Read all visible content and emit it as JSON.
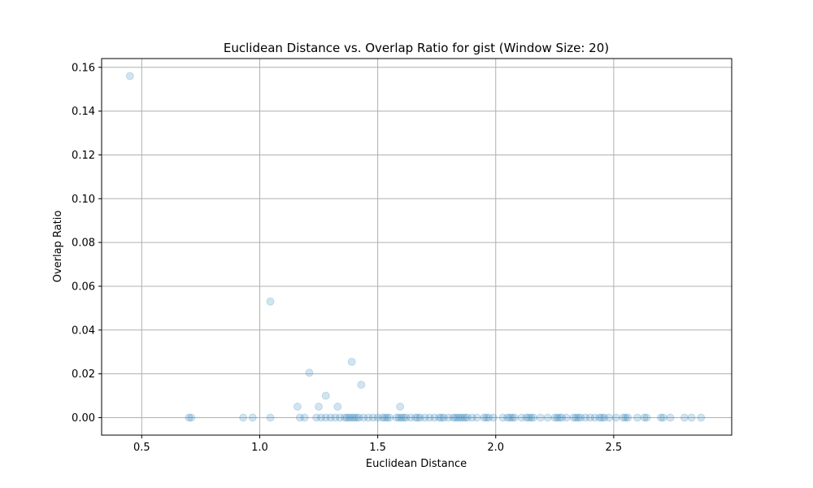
{
  "chart_data": {
    "type": "scatter",
    "title": "Euclidean Distance vs. Overlap Ratio for gist (Window Size: 20)",
    "xlabel": "Euclidean Distance",
    "ylabel": "Overlap Ratio",
    "xlim": [
      0.33,
      3.0
    ],
    "ylim": [
      -0.008,
      0.164
    ],
    "xticks": [
      0.5,
      1.0,
      1.5,
      2.0,
      2.5
    ],
    "xtick_labels": [
      "0.5",
      "1.0",
      "1.5",
      "2.0",
      "2.5"
    ],
    "yticks": [
      0.0,
      0.02,
      0.04,
      0.06,
      0.08,
      0.1,
      0.12,
      0.14,
      0.16
    ],
    "ytick_labels": [
      "0.00",
      "0.02",
      "0.04",
      "0.06",
      "0.08",
      "0.10",
      "0.12",
      "0.14",
      "0.16"
    ],
    "grid": true,
    "marker_color": "#1f77b4",
    "marker_alpha": 0.2,
    "points": {
      "x": [
        0.45,
        1.045,
        1.39,
        1.21,
        1.43,
        1.28,
        1.16,
        1.25,
        1.33,
        1.595,
        0.7,
        0.71,
        0.93,
        0.97,
        1.045,
        1.17,
        1.19,
        1.24,
        1.26,
        1.28,
        1.3,
        1.32,
        1.34,
        1.36,
        1.37,
        1.38,
        1.39,
        1.4,
        1.41,
        1.42,
        1.44,
        1.46,
        1.48,
        1.5,
        1.52,
        1.53,
        1.54,
        1.55,
        1.58,
        1.59,
        1.6,
        1.61,
        1.62,
        1.64,
        1.66,
        1.67,
        1.68,
        1.7,
        1.72,
        1.74,
        1.76,
        1.77,
        1.78,
        1.8,
        1.82,
        1.83,
        1.84,
        1.85,
        1.86,
        1.87,
        1.88,
        1.9,
        1.92,
        1.95,
        1.96,
        1.97,
        1.99,
        2.03,
        2.05,
        2.06,
        2.07,
        2.08,
        2.11,
        2.13,
        2.14,
        2.15,
        2.16,
        2.19,
        2.22,
        2.25,
        2.26,
        2.27,
        2.28,
        2.3,
        2.33,
        2.34,
        2.35,
        2.36,
        2.38,
        2.4,
        2.42,
        2.44,
        2.45,
        2.46,
        2.48,
        2.51,
        2.54,
        2.55,
        2.56,
        2.6,
        2.63,
        2.64,
        2.7,
        2.71,
        2.74,
        2.8,
        2.83,
        2.87
      ],
      "y": [
        0.156,
        0.053,
        0.0255,
        0.0205,
        0.015,
        0.01,
        0.005,
        0.005,
        0.005,
        0.005,
        0,
        0,
        0,
        0,
        0,
        0,
        0,
        0,
        0,
        0,
        0,
        0,
        0,
        0,
        0,
        0,
        0,
        0,
        0,
        0,
        0,
        0,
        0,
        0,
        0,
        0,
        0,
        0,
        0,
        0,
        0,
        0,
        0,
        0,
        0,
        0,
        0,
        0,
        0,
        0,
        0,
        0,
        0,
        0,
        0,
        0,
        0,
        0,
        0,
        0,
        0,
        0,
        0,
        0,
        0,
        0,
        0,
        0,
        0,
        0,
        0,
        0,
        0,
        0,
        0,
        0,
        0,
        0,
        0,
        0,
        0,
        0,
        0,
        0,
        0,
        0,
        0,
        0,
        0,
        0,
        0,
        0,
        0,
        0,
        0,
        0,
        0,
        0,
        0,
        0,
        0,
        0,
        0,
        0,
        0,
        0,
        0,
        0
      ]
    }
  }
}
